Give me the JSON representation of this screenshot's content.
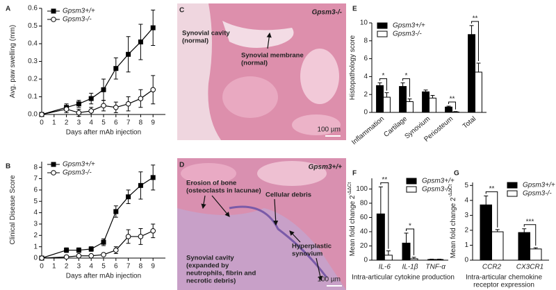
{
  "chart_data": [
    {
      "type": "line",
      "panel": "A",
      "xlabel": "Days after mAb injection",
      "ylabel": "Avg. paw swelling (mm)",
      "x": [
        0,
        2,
        3,
        4,
        5,
        6,
        7,
        8,
        9
      ],
      "xlim": [
        0,
        10
      ],
      "xticks": [
        0,
        1,
        2,
        3,
        4,
        5,
        6,
        7,
        8,
        9
      ],
      "ylim": [
        0,
        0.6
      ],
      "yticks": [
        {
          "value": 0,
          "label": "0.0"
        },
        0.1,
        0.2,
        0.3,
        0.4,
        0.5,
        0.6
      ],
      "legend": "upper left",
      "series": [
        {
          "name": "Gpsm3+/+",
          "color": "#000000",
          "marker": "square",
          "fill": "#000000",
          "values": [
            0,
            0.04,
            0.06,
            0.09,
            0.14,
            0.26,
            0.34,
            0.41,
            0.49
          ],
          "errors": [
            0,
            0.02,
            0.02,
            0.03,
            0.06,
            0.06,
            0.1,
            0.1,
            0.1
          ]
        },
        {
          "name": "Gpsm3-/-",
          "color": "#000000",
          "marker": "circle",
          "fill": "#ffffff",
          "values": [
            0,
            0.03,
            0.01,
            0.02,
            0.05,
            0.04,
            0.06,
            0.09,
            0.14
          ],
          "errors": [
            0,
            0.02,
            0.02,
            0.02,
            0.03,
            0.03,
            0.04,
            0.05,
            0.08
          ]
        }
      ]
    },
    {
      "type": "line",
      "panel": "B",
      "xlabel": "Days after mAb injection",
      "ylabel": "Clinical Disease Score",
      "x": [
        0,
        2,
        3,
        4,
        5,
        6,
        7,
        8,
        9
      ],
      "xlim": [
        0,
        10
      ],
      "xticks": [
        0,
        1,
        2,
        3,
        4,
        5,
        6,
        7,
        8,
        9
      ],
      "ylim": [
        0,
        8.5
      ],
      "yticks": [
        0,
        1,
        2,
        3,
        4,
        5,
        6,
        7,
        8
      ],
      "legend": "upper left",
      "series": [
        {
          "name": "Gpsm3+/+",
          "color": "#000000",
          "marker": "square",
          "fill": "#000000",
          "values": [
            0,
            0.7,
            0.7,
            0.8,
            1.4,
            4.1,
            5.4,
            6.4,
            7.1
          ],
          "errors": [
            0,
            0.2,
            0.2,
            0.2,
            0.3,
            0.5,
            0.6,
            1.2,
            1.1
          ]
        },
        {
          "name": "Gpsm3-/-",
          "color": "#000000",
          "marker": "circle",
          "fill": "#ffffff",
          "values": [
            0,
            0.1,
            0.2,
            0.2,
            0.3,
            0.7,
            1.9,
            1.9,
            2.4
          ],
          "errors": [
            0,
            0.1,
            0.1,
            0.1,
            0.1,
            0.3,
            0.6,
            0.7,
            0.6
          ]
        }
      ]
    },
    {
      "type": "image",
      "panel": "C",
      "title": "Gpsm3-/-",
      "scale_label": "100 µm",
      "annotations": [
        {
          "lines": [
            "Synovial cavity",
            "(normal)"
          ]
        },
        {
          "lines": [
            "Synovial membrane",
            "(normal)"
          ]
        }
      ]
    },
    {
      "type": "image",
      "panel": "D",
      "title": "Gpsm3+/+",
      "scale_label": "100 µm",
      "annotations": [
        {
          "lines": [
            "Erosion of bone",
            "(osteoclasts in lacunae)"
          ]
        },
        {
          "lines": [
            "Cellular debris"
          ]
        },
        {
          "lines": [
            "Hyperplastic",
            "synovium"
          ]
        },
        {
          "lines": [
            "Synovial cavity",
            "(expanded by",
            "neutrophils, fibrin and",
            "necrotic debris)"
          ]
        }
      ]
    },
    {
      "type": "bar",
      "panel": "E",
      "ylabel": "Histopathology score",
      "rotate_labels": true,
      "categories": [
        "Inflammation",
        "Cartilage",
        "Synovium",
        "Periosteum",
        "Total"
      ],
      "ylim": [
        0,
        10
      ],
      "yticks": [
        0,
        2,
        4,
        6,
        8,
        10
      ],
      "legend": "upper left",
      "significance": [
        "*",
        "*",
        null,
        "**",
        "**"
      ],
      "series": [
        {
          "name": "Gpsm3+/+",
          "color": "#000000",
          "fill": "#000000",
          "values": [
            3.0,
            2.9,
            2.3,
            0.6,
            8.7
          ],
          "errors": [
            0.3,
            0.4,
            0.2,
            0.1,
            1.0
          ]
        },
        {
          "name": "Gpsm3-/-",
          "color": "#000000",
          "fill": "#ffffff",
          "values": [
            1.7,
            1.2,
            1.6,
            0.05,
            4.5
          ],
          "errors": [
            0.5,
            0.3,
            0.3,
            0.05,
            1.0
          ]
        }
      ]
    },
    {
      "type": "bar",
      "panel": "F",
      "ylabel": "Mean fold change 2",
      "ylabel_sup": "-ΔΔCt",
      "italic_labels": true,
      "xlabel": [
        "Intra-articular cytokine production"
      ],
      "categories": [
        "IL-6",
        "IL-1β",
        "TNF-α"
      ],
      "ylim": [
        0,
        115
      ],
      "yticks": [
        0,
        20,
        40,
        60,
        80,
        100
      ],
      "legend": "upper right",
      "significance": [
        "**",
        "*",
        null
      ],
      "series": [
        {
          "name": "Gpsm3+/+",
          "color": "#000000",
          "fill": "#000000",
          "values": [
            65,
            24,
            1
          ],
          "errors": [
            38,
            14,
            0.5
          ]
        },
        {
          "name": "Gpsm3-/-",
          "color": "#000000",
          "fill": "#ffffff",
          "values": [
            7,
            2,
            1
          ],
          "errors": [
            6,
            2,
            0.5
          ]
        }
      ]
    },
    {
      "type": "bar",
      "panel": "G",
      "ylabel": "Mean fold change 2",
      "ylabel_sup": "-ΔΔCt",
      "italic_labels": true,
      "xlabel": [
        "Intra-articular chemokine",
        "receptor expression"
      ],
      "categories": [
        "CCR2",
        "CX3CR1"
      ],
      "ylim": [
        0,
        5.2
      ],
      "yticks": [
        0,
        1,
        2,
        3,
        4,
        5
      ],
      "legend": "upper right",
      "significance": [
        "**",
        "***"
      ],
      "series": [
        {
          "name": "Gpsm3+/+",
          "color": "#000000",
          "fill": "#000000",
          "values": [
            3.7,
            1.85
          ],
          "errors": [
            0.6,
            0.25
          ]
        },
        {
          "name": "Gpsm3-/-",
          "color": "#000000",
          "fill": "#ffffff",
          "values": [
            1.9,
            0.75
          ],
          "errors": [
            0.15,
            0.08
          ]
        }
      ]
    }
  ]
}
